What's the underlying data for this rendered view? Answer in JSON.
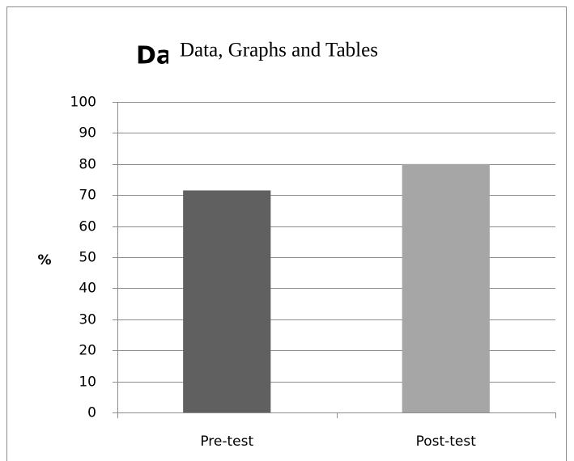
{
  "chart_data": {
    "type": "bar",
    "title": "Data, Graphs and Tables",
    "y_label": "%",
    "categories": [
      "Pre-test",
      "Post-test"
    ],
    "values": [
      71.5,
      80
    ],
    "colors": [
      "#606060",
      "#a6a6a6"
    ],
    "ylim": [
      0,
      100
    ],
    "yticks": [
      0,
      10,
      20,
      30,
      40,
      50,
      60,
      70,
      80,
      90,
      100
    ],
    "grid": true
  }
}
